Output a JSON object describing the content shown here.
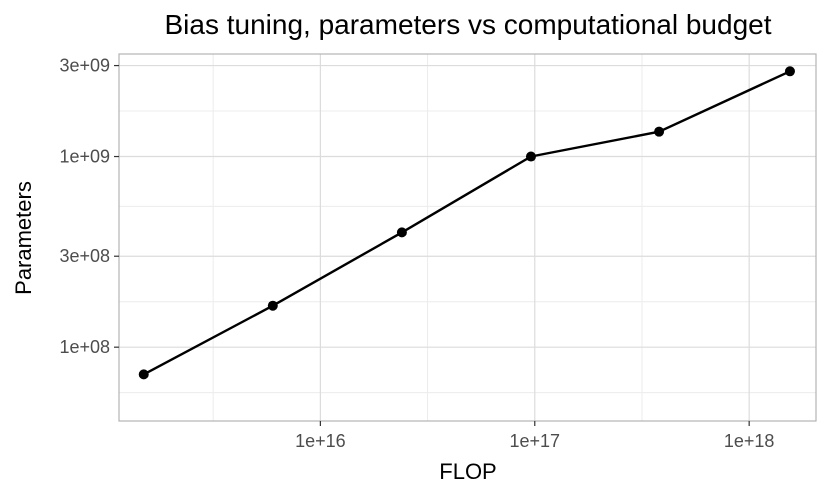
{
  "chart_data": {
    "type": "line",
    "title": "Bias tuning, parameters vs computational budget",
    "xlabel": "FLOP",
    "ylabel": "Parameters",
    "x_scale": "log10",
    "y_scale": "log10",
    "xlim": [
      1150000000000000.0,
      2.05e+18
    ],
    "ylim": [
      41000000.0,
      3450000000.0
    ],
    "x_ticks": [
      {
        "value": 1e+16,
        "label": "1e+16"
      },
      {
        "value": 1e+17,
        "label": "1e+17"
      },
      {
        "value": 1e+18,
        "label": "1e+18"
      }
    ],
    "y_ticks": [
      {
        "value": 100000000.0,
        "label": "1e+08"
      },
      {
        "value": 300000000.0,
        "label": "3e+08"
      },
      {
        "value": 1000000000.0,
        "label": "1e+09"
      },
      {
        "value": 3000000000.0,
        "label": "3e+09"
      }
    ],
    "grid": true,
    "series": [
      {
        "color": "#000000",
        "x": [
          1500000000000000.0,
          6000000000000000.0,
          2.4e+16,
          9.6e+16,
          3.8e+17,
          1.55e+18
        ],
        "y": [
          72000000.0,
          165000000.0,
          400000000.0,
          1000000000.0,
          1350000000.0,
          2800000000.0
        ]
      }
    ]
  }
}
